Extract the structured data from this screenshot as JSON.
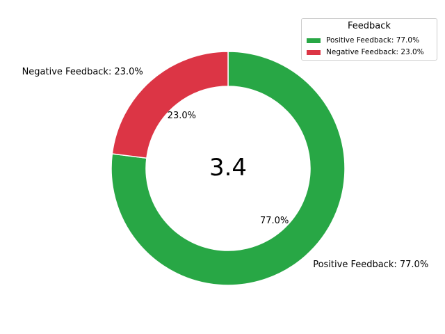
{
  "chart_data": {
    "type": "pie",
    "variant": "donut",
    "center_text": "3.4",
    "slices": [
      {
        "label": "Positive Feedback",
        "value": 77.0,
        "outer_label": "Positive Feedback: 77.0%",
        "pct_label": "77.0%",
        "legend_label": "Positive Feedback: 77.0%",
        "color": "#28a745"
      },
      {
        "label": "Negative Feedback",
        "value": 23.0,
        "outer_label": "Negative Feedback: 23.0%",
        "pct_label": "23.0%",
        "legend_label": "Negative Feedback: 23.0%",
        "color": "#dc3545"
      }
    ],
    "start_angle_deg": 90,
    "direction": "clockwise",
    "legend": {
      "title": "Feedback",
      "placement": "top-right"
    }
  }
}
